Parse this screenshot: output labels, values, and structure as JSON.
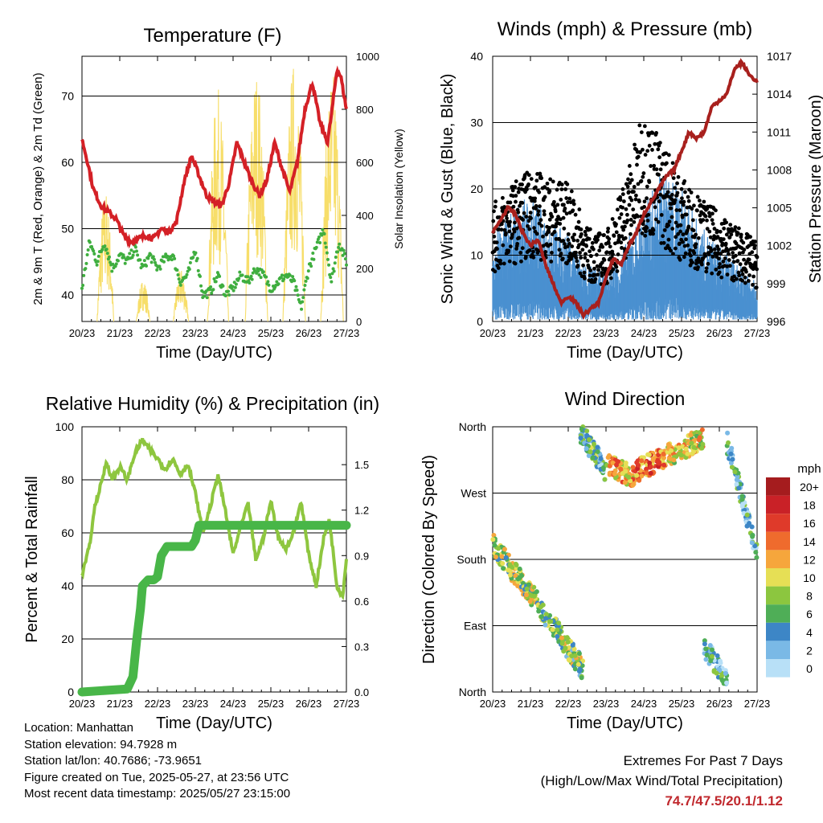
{
  "colors": {
    "t2m": "#d42026",
    "t9m": "#f08c28",
    "td": "#3fae3f",
    "solar": "#f7de6a",
    "wind": "#4a90d0",
    "gust": "#000000",
    "pressure": "#a8201d",
    "rh": "#8ec63f",
    "precip": "#48b648",
    "grid": "#000000"
  },
  "time_ticks": [
    "20/23",
    "21/23",
    "22/23",
    "23/23",
    "24/23",
    "25/23",
    "26/23",
    "27/23"
  ],
  "chart_data": [
    {
      "id": "temperature",
      "type": "line",
      "title": "Temperature (F)",
      "xlabel": "Time (Day/UTC)",
      "ylabel": "2m & 9m T (Red, Orange) & 2m Td (Green)",
      "ylabel_right": "Solar Insolation (Yellow)",
      "ylim": [
        36,
        76
      ],
      "yticks": [
        40,
        50,
        60,
        70
      ],
      "ylim_right": [
        0,
        1000
      ],
      "yticks_right": [
        0,
        200,
        400,
        600,
        800,
        1000
      ],
      "x_days": [
        0,
        7
      ],
      "series": [
        {
          "key": "t2m",
          "axis": "left",
          "x": [
            0,
            0.15,
            0.3,
            0.5,
            0.7,
            0.9,
            1.1,
            1.3,
            1.5,
            1.7,
            1.9,
            2.1,
            2.3,
            2.5,
            2.7,
            2.9,
            3.1,
            3.3,
            3.5,
            3.7,
            3.9,
            4.1,
            4.3,
            4.5,
            4.7,
            4.9,
            5.1,
            5.3,
            5.5,
            5.7,
            5.9,
            6.1,
            6.3,
            6.5,
            6.6,
            6.75,
            6.85,
            7
          ],
          "y": [
            63.5,
            60,
            56,
            53.5,
            52.5,
            51.5,
            49,
            48,
            48.5,
            49,
            48.5,
            50,
            49.5,
            51,
            57,
            61,
            58,
            55,
            54,
            53.5,
            57,
            63,
            60,
            57,
            55,
            57.5,
            63,
            59,
            55.5,
            60,
            68,
            72,
            66,
            63,
            67,
            74,
            73,
            68
          ]
        },
        {
          "key": "td",
          "axis": "left",
          "x": [
            0,
            0.2,
            0.4,
            0.6,
            0.8,
            1.0,
            1.2,
            1.4,
            1.6,
            1.8,
            2.0,
            2.2,
            2.4,
            2.6,
            2.8,
            3.0,
            3.2,
            3.4,
            3.6,
            3.8,
            4.0,
            4.2,
            4.4,
            4.6,
            4.8,
            5.0,
            5.2,
            5.4,
            5.6,
            5.8,
            6.0,
            6.2,
            6.4,
            6.6,
            6.8,
            7
          ],
          "y": [
            41,
            48,
            45,
            48,
            44,
            46,
            45,
            47,
            44,
            46,
            44,
            45.5,
            46,
            42,
            43,
            47,
            40,
            40.5,
            43,
            40,
            41,
            43,
            42,
            44,
            43,
            41,
            42,
            43,
            42,
            38,
            44,
            47,
            50,
            42,
            48,
            45
          ]
        },
        {
          "key": "solar",
          "axis": "right",
          "days": [
            {
              "c": 0.62,
              "peak": 500,
              "w": 0.22
            },
            {
              "c": 1.62,
              "peak": 160,
              "w": 0.18
            },
            {
              "c": 2.62,
              "peak": 200,
              "w": 0.2
            },
            {
              "c": 3.6,
              "peak": 880,
              "w": 0.28
            },
            {
              "c": 4.62,
              "peak": 960,
              "w": 0.3
            },
            {
              "c": 5.62,
              "peak": 990,
              "w": 0.3
            },
            {
              "c": 6.62,
              "peak": 960,
              "w": 0.3
            }
          ]
        }
      ]
    },
    {
      "id": "winds",
      "type": "scatter",
      "title": "Winds (mph) & Pressure (mb)",
      "xlabel": "Time (Day/UTC)",
      "ylabel": "Sonic Wind & Gust (Blue, Black)",
      "ylabel_right": "Station Pressure (Maroon)",
      "ylim": [
        0,
        40
      ],
      "yticks": [
        0,
        10,
        20,
        30,
        40
      ],
      "ylim_right": [
        996,
        1017
      ],
      "yticks_right": [
        996,
        999,
        1002,
        1005,
        1008,
        1011,
        1014,
        1017
      ],
      "x_days": [
        0,
        7
      ],
      "wind_envelope": {
        "x": [
          0,
          0.5,
          1.0,
          1.5,
          2.0,
          2.5,
          3.0,
          3.5,
          4.0,
          4.5,
          5.0,
          5.5,
          6.0,
          6.5,
          7
        ],
        "y": [
          9,
          12,
          13,
          11,
          9,
          6,
          5,
          8,
          12,
          16,
          14,
          10,
          8,
          6,
          5
        ]
      },
      "gust_envelope": {
        "x": [
          0,
          0.5,
          1.0,
          1.5,
          2.0,
          2.5,
          3.0,
          3.5,
          4.0,
          4.5,
          5.0,
          5.5,
          6.0,
          6.5,
          7
        ],
        "y": [
          16,
          19,
          21,
          20,
          19,
          13,
          12,
          20,
          29,
          25,
          20,
          17,
          15,
          13,
          11
        ]
      },
      "pressure": {
        "x": [
          0,
          0.2,
          0.4,
          0.6,
          0.8,
          1.0,
          1.2,
          1.4,
          1.6,
          1.8,
          2.0,
          2.2,
          2.4,
          2.6,
          2.8,
          3.0,
          3.2,
          3.4,
          3.6,
          3.8,
          4.0,
          4.2,
          4.4,
          4.6,
          4.8,
          5.0,
          5.2,
          5.4,
          5.6,
          5.8,
          6.0,
          6.2,
          6.4,
          6.6,
          6.8,
          7
        ],
        "y": [
          1003,
          1004,
          1005,
          1004.5,
          1003,
          1002,
          1002.5,
          1000.5,
          999,
          997.5,
          998,
          997.5,
          996.5,
          997,
          997.5,
          999.5,
          1001,
          1000.5,
          1002,
          1003,
          1004.5,
          1005.5,
          1006.5,
          1007.5,
          1008,
          1009.5,
          1011,
          1010.5,
          1011,
          1013,
          1013.5,
          1014,
          1016,
          1016.5,
          1015.5,
          1015
        ]
      }
    },
    {
      "id": "humidity",
      "type": "line",
      "title": "Relative Humidity (%) & Precipitation (in)",
      "xlabel": "Time (Day/UTC)",
      "ylabel": "Percent & Total Rainfall",
      "ylim": [
        0,
        100
      ],
      "yticks": [
        0,
        20,
        40,
        60,
        80,
        100
      ],
      "ylim_right": [
        0,
        1.75
      ],
      "yticks_right": [
        "0.0",
        "0.3",
        "0.6",
        "0.9",
        "1.2",
        "1.5"
      ],
      "yticks_right_values": [
        0,
        0.3,
        0.6,
        0.9,
        1.2,
        1.5
      ],
      "x_days": [
        0,
        7
      ],
      "series": [
        {
          "key": "rh",
          "axis": "left",
          "x": [
            0,
            0.2,
            0.35,
            0.5,
            0.65,
            0.8,
            1.0,
            1.2,
            1.4,
            1.6,
            1.8,
            2.0,
            2.2,
            2.4,
            2.6,
            2.8,
            3.0,
            3.2,
            3.4,
            3.6,
            3.8,
            4.0,
            4.2,
            4.4,
            4.6,
            4.8,
            5.0,
            5.2,
            5.4,
            5.6,
            5.8,
            6.0,
            6.2,
            6.4,
            6.55,
            6.75,
            6.9,
            7
          ],
          "y": [
            44,
            55,
            71,
            78,
            87,
            80,
            85,
            80,
            90,
            95,
            91,
            88,
            84,
            88,
            82,
            86,
            75,
            60,
            70,
            82,
            68,
            52,
            62,
            71,
            50,
            58,
            72,
            58,
            54,
            60,
            72,
            52,
            40,
            58,
            65,
            40,
            36,
            50
          ]
        },
        {
          "key": "precip",
          "axis": "right",
          "x": [
            0,
            1.2,
            1.35,
            1.45,
            1.55,
            1.6,
            1.75,
            1.9,
            2.0,
            2.1,
            2.25,
            2.5,
            2.9,
            3.0,
            3.1,
            3.2,
            4,
            5,
            6,
            7
          ],
          "y": [
            0,
            0.02,
            0.1,
            0.35,
            0.55,
            0.7,
            0.74,
            0.74,
            0.76,
            0.9,
            0.96,
            0.96,
            0.96,
            1.0,
            1.1,
            1.1,
            1.1,
            1.1,
            1.1,
            1.1
          ]
        }
      ]
    },
    {
      "id": "wind_direction",
      "type": "scatter",
      "title": "Wind Direction",
      "xlabel": "Time (Day/UTC)",
      "ylabel": "Direction (Colored By Speed)",
      "yticks": [
        "North",
        "East",
        "South",
        "West",
        "North"
      ],
      "yticks_values": [
        0,
        90,
        180,
        270,
        360
      ],
      "ylim": [
        0,
        360
      ],
      "x_days": [
        0,
        7
      ],
      "clusters": [
        {
          "x0": 0.0,
          "x1": 1.2,
          "d0": 200,
          "d1": 120,
          "spd": 8
        },
        {
          "x0": 1.2,
          "x1": 2.4,
          "d0": 120,
          "d1": 30,
          "spd": 7
        },
        {
          "x0": 2.3,
          "x1": 3.0,
          "d0": 355,
          "d1": 300,
          "spd": 5
        },
        {
          "x0": 3.0,
          "x1": 3.8,
          "d0": 310,
          "d1": 290,
          "spd": 11
        },
        {
          "x0": 3.8,
          "x1": 4.6,
          "d0": 300,
          "d1": 320,
          "spd": 14
        },
        {
          "x0": 4.6,
          "x1": 5.6,
          "d0": 320,
          "d1": 345,
          "spd": 10
        },
        {
          "x0": 5.6,
          "x1": 6.2,
          "d0": 60,
          "d1": 20,
          "spd": 4
        },
        {
          "x0": 6.2,
          "x1": 7.0,
          "d0": 340,
          "d1": 190,
          "spd": 4
        }
      ],
      "legend": {
        "title": "mph",
        "labels": [
          "20+",
          "18",
          "16",
          "14",
          "12",
          "10",
          "8",
          "6",
          "4",
          "2",
          "0"
        ],
        "colors": [
          "#a51c1e",
          "#c92127",
          "#df3a2a",
          "#ef6b2d",
          "#f6a63c",
          "#e6df55",
          "#8cc63f",
          "#4fae57",
          "#3d86c6",
          "#7ab9e6",
          "#b8e0f7"
        ]
      }
    }
  ],
  "meta": {
    "location": "Location: Manhattan",
    "elevation": "Station elevation: 94.7928 m",
    "latlon": "Station lat/lon: 40.7686; -73.9651",
    "created": "Figure created on Tue, 2025-05-27, at 23:56 UTC",
    "recent": "Most recent data timestamp: 2025/05/27 23:15:00"
  },
  "extremes": {
    "line1": "Extremes For Past 7 Days",
    "line2": "(High/Low/Max Wind/Total Precipitation)",
    "values": "74.7/47.5/20.1/1.12"
  }
}
